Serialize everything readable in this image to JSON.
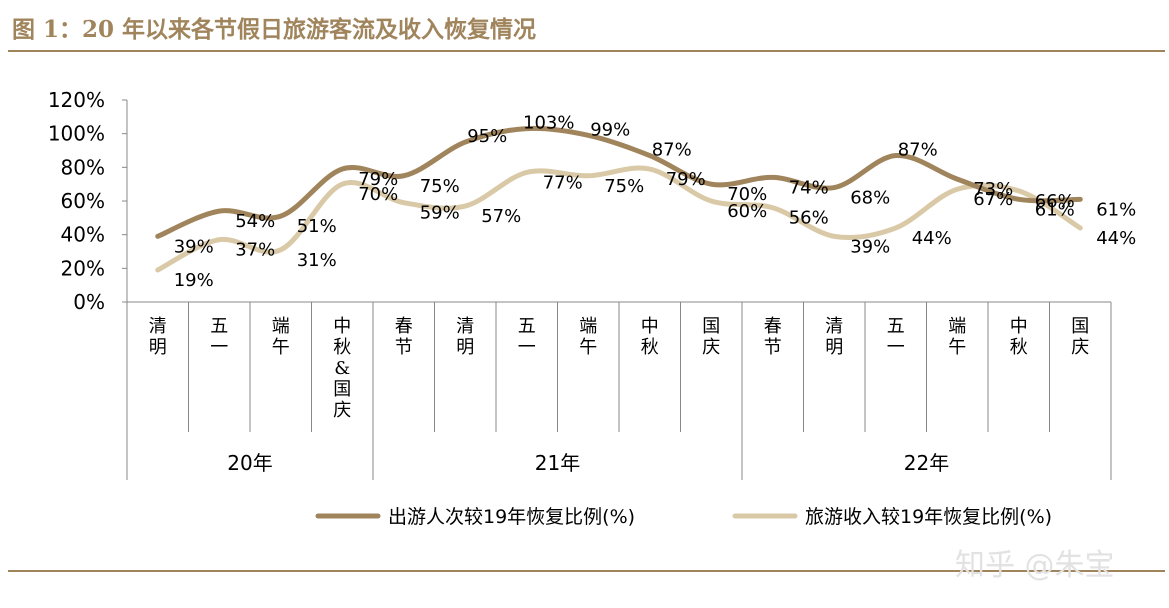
{
  "figure_title": "图 1：20 年以来各节假日旅游客流及收入恢复情况",
  "watermark": "知乎 @朱宝",
  "colors": {
    "accent": "#a0845c",
    "series1": "#a0845c",
    "series2": "#d9c9a7",
    "axis": "#888888"
  },
  "chart_data": {
    "type": "line",
    "categories": [
      "清明",
      "五一",
      "端午",
      "中秋&国庆",
      "春节",
      "清明",
      "五一",
      "端午",
      "中秋",
      "国庆",
      "春节",
      "清明",
      "五一",
      "端午",
      "中秋",
      "国庆"
    ],
    "groups": [
      {
        "label": "20年",
        "count": 4
      },
      {
        "label": "21年",
        "count": 6
      },
      {
        "label": "22年",
        "count": 6
      }
    ],
    "series": [
      {
        "name": "出游人次较19年恢复比例(%)",
        "values": [
          39,
          54,
          51,
          79,
          75,
          95,
          103,
          99,
          87,
          70,
          74,
          68,
          87,
          73,
          61,
          61
        ],
        "labels": [
          "39%",
          "54%",
          "51%",
          "79%",
          "75%",
          "95%",
          "103%",
          "99%",
          "87%",
          "70%",
          "74%",
          "68%",
          "87%",
          "73%",
          "61%",
          "61%"
        ]
      },
      {
        "name": "旅游收入较19年恢复比例(%)",
        "values": [
          19,
          37,
          31,
          70,
          59,
          57,
          77,
          75,
          79,
          60,
          56,
          39,
          44,
          67,
          66,
          44
        ],
        "labels": [
          "19%",
          "37%",
          "31%",
          "70%",
          "59%",
          "57%",
          "77%",
          "75%",
          "79%",
          "60%",
          "56%",
          "39%",
          "44%",
          "67%",
          "66%",
          "44%"
        ]
      }
    ],
    "y_ticks": [
      "0%",
      "20%",
      "40%",
      "60%",
      "80%",
      "100%",
      "120%"
    ],
    "ylim": [
      0,
      120
    ],
    "grid": false,
    "legend_position": "bottom-right"
  }
}
